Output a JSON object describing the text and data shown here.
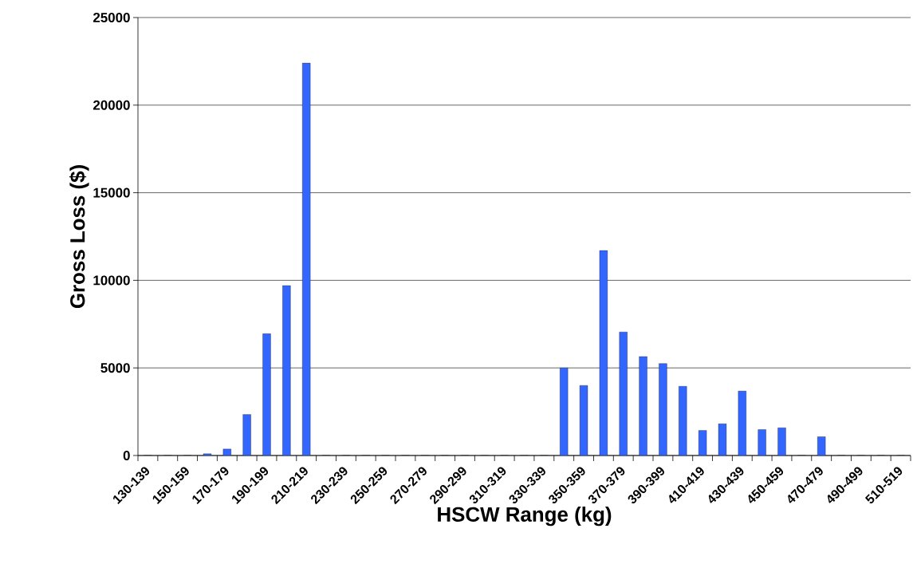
{
  "chart_data": {
    "type": "bar",
    "xlabel": "HSCW Range (kg)",
    "ylabel": "Gross Loss ($)",
    "categories": [
      "130-139",
      null,
      "150-159",
      null,
      "170-179",
      null,
      "190-199",
      null,
      "210-219",
      null,
      "230-239",
      null,
      "250-259",
      null,
      "270-279",
      null,
      "290-299",
      null,
      "310-319",
      null,
      "330-339",
      null,
      "350-359",
      null,
      "370-379",
      null,
      "390-399",
      null,
      "410-419",
      null,
      "430-439",
      null,
      "450-459",
      null,
      "470-479",
      null,
      "490-499",
      null,
      "510-519"
    ],
    "values": [
      0,
      0,
      0,
      100,
      370,
      2340,
      6950,
      9700,
      22400,
      0,
      0,
      0,
      0,
      0,
      0,
      0,
      0,
      0,
      0,
      0,
      0,
      5000,
      4000,
      11700,
      7050,
      5650,
      5250,
      3950,
      1430,
      1810,
      3680,
      1480,
      1580,
      0,
      1070,
      0,
      0,
      0,
      0
    ],
    "color": "#3366ff",
    "ylim": [
      0,
      25000
    ],
    "yticks": [
      0,
      5000,
      10000,
      15000,
      20000,
      25000
    ],
    "grid": "y"
  }
}
